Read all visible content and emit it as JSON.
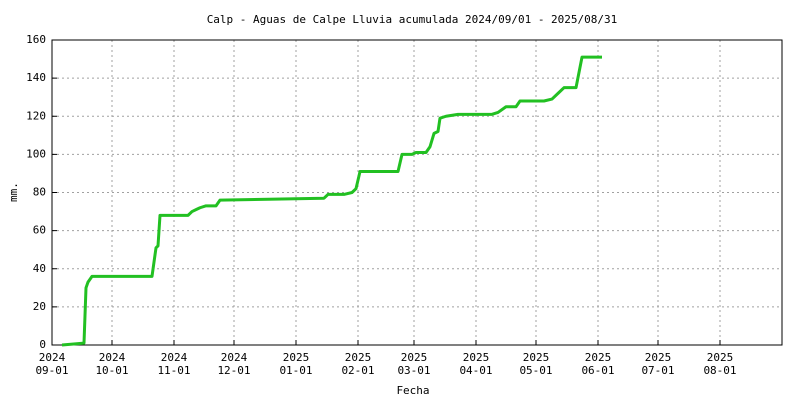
{
  "chart_data": {
    "type": "line",
    "title": "Calp - Aguas de Calpe Lluvia acumulada 2024/09/01 - 2025/08/31",
    "x_label": "Fecha",
    "y_label": "mm.",
    "x": [
      "2024-09-06",
      "2024-09-17",
      "2024-09-18",
      "2024-09-19",
      "2024-09-21",
      "2024-10-21",
      "2024-10-23",
      "2024-10-24",
      "2024-10-25",
      "2024-11-08",
      "2024-11-10",
      "2024-11-12",
      "2024-11-14",
      "2024-11-17",
      "2024-11-22",
      "2024-11-24",
      "2025-01-15",
      "2025-01-17",
      "2025-01-25",
      "2025-01-29",
      "2025-01-31",
      "2025-02-02",
      "2025-02-21",
      "2025-02-23",
      "2025-02-28",
      "2025-03-02",
      "2025-03-07",
      "2025-03-09",
      "2025-03-11",
      "2025-03-13",
      "2025-03-14",
      "2025-03-17",
      "2025-03-23",
      "2025-04-09",
      "2025-04-12",
      "2025-04-16",
      "2025-04-21",
      "2025-04-23",
      "2025-05-05",
      "2025-05-09",
      "2025-05-12",
      "2025-05-15",
      "2025-05-21",
      "2025-05-24",
      "2025-06-03"
    ],
    "series": [
      {
        "color": "#22c022",
        "values": [
          0,
          1,
          30,
          33,
          36,
          36,
          51,
          52,
          68,
          68,
          70,
          71,
          72,
          73,
          73,
          76,
          77,
          79,
          79,
          80,
          82,
          91,
          91,
          100,
          100,
          101,
          101,
          104,
          111,
          112,
          119,
          120,
          121,
          121,
          122,
          125,
          125,
          128,
          128,
          129,
          132,
          135,
          135,
          151,
          151
        ]
      }
    ],
    "xlim": [
      "2024-09-01",
      "2025-09-01"
    ],
    "xticks": [
      {
        "value": "2024-09-01",
        "label": [
          "2024",
          "09-01"
        ]
      },
      {
        "value": "2024-10-01",
        "label": [
          "2024",
          "10-01"
        ]
      },
      {
        "value": "2024-11-01",
        "label": [
          "2024",
          "11-01"
        ]
      },
      {
        "value": "2024-12-01",
        "label": [
          "2024",
          "12-01"
        ]
      },
      {
        "value": "2025-01-01",
        "label": [
          "2025",
          "01-01"
        ]
      },
      {
        "value": "2025-02-01",
        "label": [
          "2025",
          "02-01"
        ]
      },
      {
        "value": "2025-03-01",
        "label": [
          "2025",
          "03-01"
        ]
      },
      {
        "value": "2025-04-01",
        "label": [
          "2025",
          "04-01"
        ]
      },
      {
        "value": "2025-05-01",
        "label": [
          "2025",
          "05-01"
        ]
      },
      {
        "value": "2025-06-01",
        "label": [
          "2025",
          "06-01"
        ]
      },
      {
        "value": "2025-07-01",
        "label": [
          "2025",
          "07-01"
        ]
      },
      {
        "value": "2025-08-01",
        "label": [
          "2025",
          "08-01"
        ]
      }
    ],
    "ylim": [
      0,
      160
    ],
    "yticks": [
      0,
      20,
      40,
      60,
      80,
      100,
      120,
      140,
      160
    ],
    "grid": true
  }
}
